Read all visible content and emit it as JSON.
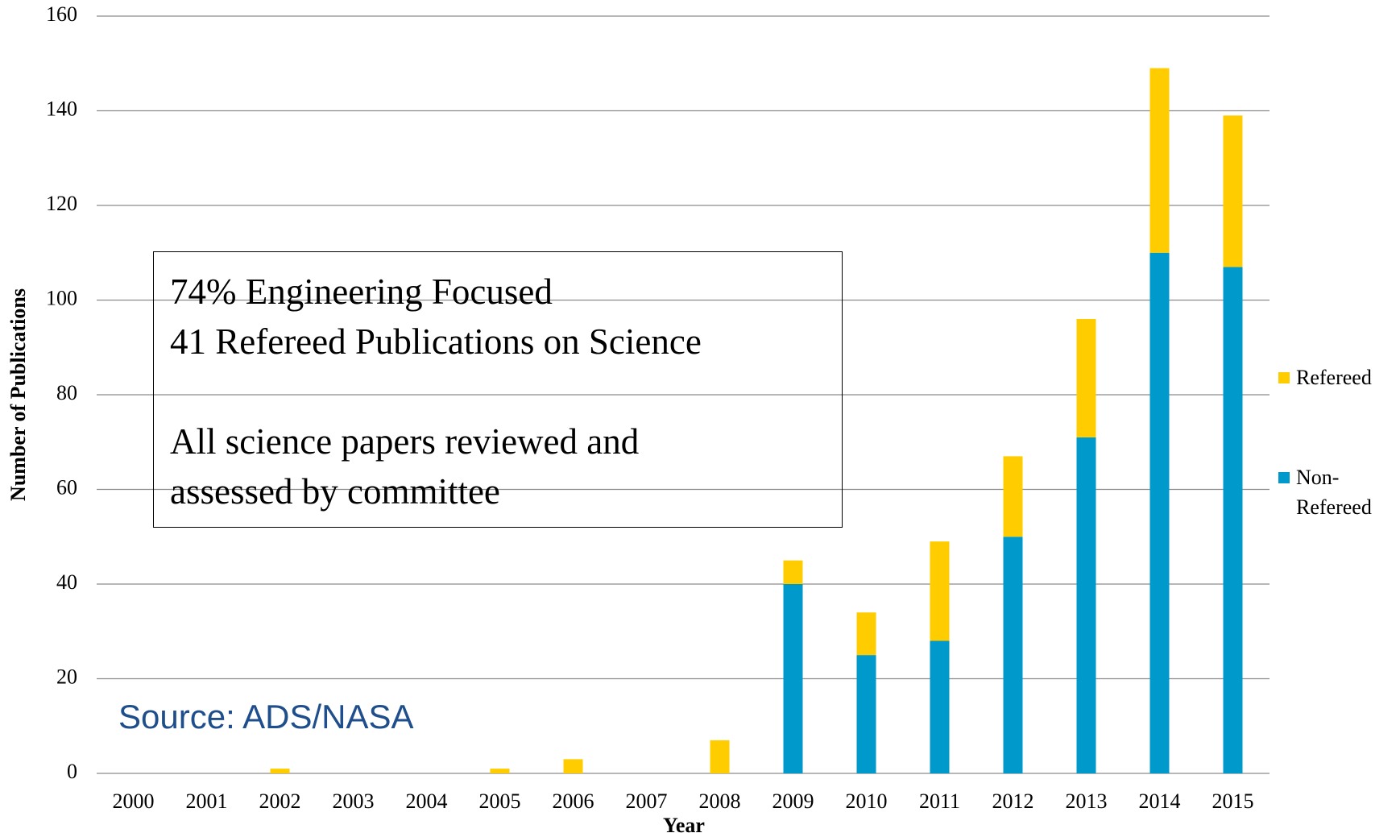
{
  "chart_data": {
    "type": "stacked_bar",
    "x_label": "Year",
    "y_label": "Number of Publications",
    "categories": [
      "2000",
      "2001",
      "2002",
      "2003",
      "2004",
      "2005",
      "2006",
      "2007",
      "2008",
      "2009",
      "2010",
      "2011",
      "2012",
      "2013",
      "2014",
      "2015"
    ],
    "series": [
      {
        "name": "Non-Refereed",
        "color": "#0099cc",
        "values": [
          0,
          0,
          0,
          0,
          0,
          0,
          0,
          0,
          0,
          40,
          25,
          28,
          50,
          71,
          110,
          107
        ]
      },
      {
        "name": "Refereed",
        "color": "#ffcc00",
        "values": [
          0,
          0,
          1,
          0,
          0,
          1,
          3,
          0,
          7,
          5,
          9,
          21,
          17,
          25,
          39,
          32
        ]
      }
    ],
    "ylim": [
      0,
      160
    ],
    "yticks": [
      0,
      20,
      40,
      60,
      80,
      100,
      120,
      140,
      160
    ],
    "grid": true,
    "legend": "right",
    "annotation": [
      "74% Engineering Focused",
      "41 Refereed Publications on Science",
      "All science papers reviewed and",
      "assessed by committee"
    ],
    "source": "Source: ADS/NASA"
  }
}
